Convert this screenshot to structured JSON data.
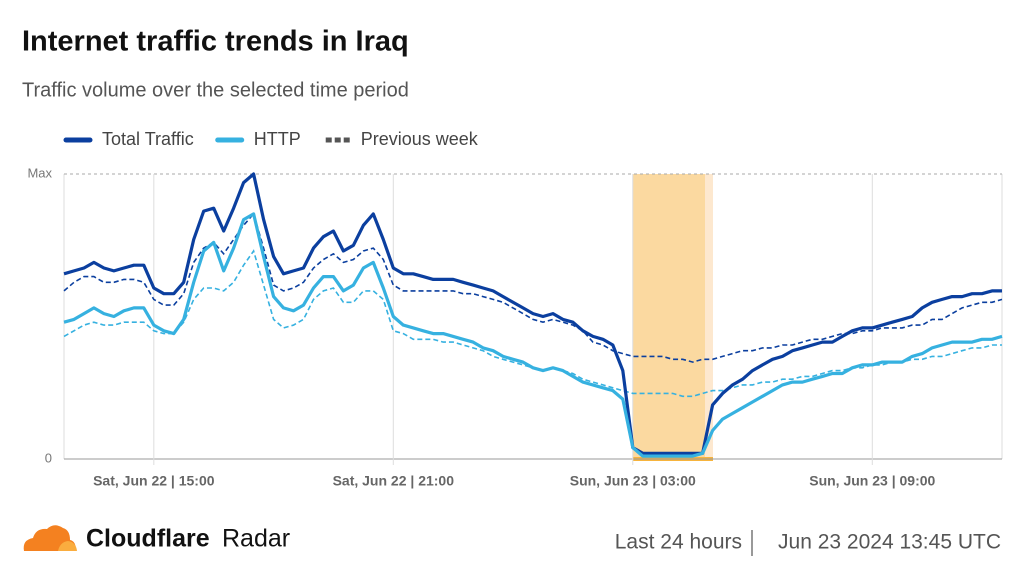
{
  "chart_data": {
    "type": "line",
    "title": "Internet traffic trends in Iraq",
    "subtitle": "Traffic volume over the selected time period",
    "categories": [
      null,
      null,
      null,
      null,
      null,
      null,
      null,
      null,
      null,
      "Sat, Jun 22 | 15:00",
      null,
      null,
      null,
      null,
      null,
      null,
      null,
      null,
      null,
      null,
      null,
      null,
      null,
      null,
      null,
      null,
      null,
      null,
      null,
      null,
      null,
      null,
      null,
      "Sat, Jun 22 | 21:00",
      null,
      null,
      null,
      null,
      null,
      null,
      null,
      null,
      null,
      null,
      null,
      null,
      null,
      null,
      null,
      null,
      null,
      null,
      null,
      null,
      null,
      null,
      null,
      "Sun, Jun 23 | 03:00",
      null,
      null,
      null,
      null,
      null,
      null,
      null,
      null,
      null,
      null,
      null,
      null,
      null,
      null,
      null,
      null,
      null,
      null,
      null,
      null,
      null,
      null,
      null,
      "Sun, Jun 23 | 09:00",
      null,
      null,
      null,
      null,
      null,
      null,
      null,
      null,
      null,
      null,
      null,
      null,
      null
    ],
    "ylim": [
      0,
      1
    ],
    "yticks": [
      0,
      {
        "value": 1,
        "label": "Max"
      }
    ],
    "grid": true,
    "previous_week_label": "Previous week",
    "previous_week_color": "#555555",
    "series": [
      {
        "name": "Total Traffic",
        "color": "#0b3f9f",
        "values": [
          0.65,
          0.66,
          0.67,
          0.69,
          0.67,
          0.66,
          0.67,
          0.68,
          0.68,
          0.6,
          0.58,
          0.58,
          0.62,
          0.77,
          0.87,
          0.88,
          0.8,
          0.88,
          0.97,
          1.0,
          0.84,
          0.71,
          0.65,
          0.66,
          0.67,
          0.74,
          0.78,
          0.8,
          0.73,
          0.75,
          0.82,
          0.86,
          0.77,
          0.67,
          0.65,
          0.65,
          0.64,
          0.63,
          0.63,
          0.63,
          0.62,
          0.61,
          0.6,
          0.59,
          0.57,
          0.55,
          0.53,
          0.51,
          0.5,
          0.51,
          0.49,
          0.48,
          0.45,
          0.43,
          0.42,
          0.4,
          0.31,
          0.04,
          0.02,
          0.02,
          0.02,
          0.02,
          0.02,
          0.02,
          0.02,
          0.19,
          0.23,
          0.26,
          0.28,
          0.31,
          0.33,
          0.35,
          0.36,
          0.38,
          0.39,
          0.4,
          0.41,
          0.41,
          0.43,
          0.45,
          0.46,
          0.46,
          0.47,
          0.48,
          0.49,
          0.5,
          0.53,
          0.55,
          0.56,
          0.57,
          0.57,
          0.58,
          0.58,
          0.59,
          0.59
        ],
        "previous_week": [
          0.59,
          0.62,
          0.64,
          0.64,
          0.62,
          0.62,
          0.63,
          0.63,
          0.62,
          0.56,
          0.54,
          0.54,
          0.58,
          0.69,
          0.74,
          0.76,
          0.72,
          0.77,
          0.82,
          0.86,
          0.74,
          0.61,
          0.59,
          0.6,
          0.62,
          0.67,
          0.7,
          0.72,
          0.69,
          0.7,
          0.73,
          0.74,
          0.7,
          0.61,
          0.59,
          0.59,
          0.59,
          0.59,
          0.59,
          0.59,
          0.58,
          0.58,
          0.57,
          0.56,
          0.55,
          0.53,
          0.51,
          0.49,
          0.48,
          0.49,
          0.48,
          0.47,
          0.45,
          0.41,
          0.4,
          0.38,
          0.37,
          0.36,
          0.36,
          0.36,
          0.36,
          0.35,
          0.35,
          0.34,
          0.35,
          0.35,
          0.36,
          0.37,
          0.38,
          0.38,
          0.39,
          0.39,
          0.4,
          0.4,
          0.41,
          0.42,
          0.42,
          0.43,
          0.44,
          0.44,
          0.45,
          0.45,
          0.46,
          0.46,
          0.46,
          0.47,
          0.47,
          0.49,
          0.49,
          0.51,
          0.53,
          0.54,
          0.55,
          0.55,
          0.56
        ]
      },
      {
        "name": "HTTP",
        "color": "#36b1e0",
        "values": [
          0.48,
          0.49,
          0.51,
          0.53,
          0.51,
          0.5,
          0.52,
          0.53,
          0.53,
          0.47,
          0.45,
          0.44,
          0.49,
          0.62,
          0.73,
          0.76,
          0.66,
          0.74,
          0.84,
          0.86,
          0.71,
          0.57,
          0.53,
          0.52,
          0.54,
          0.6,
          0.64,
          0.64,
          0.59,
          0.61,
          0.67,
          0.69,
          0.6,
          0.5,
          0.47,
          0.46,
          0.45,
          0.44,
          0.44,
          0.43,
          0.42,
          0.41,
          0.39,
          0.38,
          0.36,
          0.35,
          0.34,
          0.32,
          0.31,
          0.32,
          0.31,
          0.29,
          0.27,
          0.26,
          0.25,
          0.24,
          0.21,
          0.04,
          0.01,
          0.01,
          0.01,
          0.01,
          0.01,
          0.01,
          0.02,
          0.1,
          0.14,
          0.16,
          0.18,
          0.2,
          0.22,
          0.24,
          0.26,
          0.27,
          0.27,
          0.28,
          0.29,
          0.3,
          0.3,
          0.32,
          0.33,
          0.33,
          0.34,
          0.34,
          0.34,
          0.36,
          0.37,
          0.39,
          0.4,
          0.41,
          0.41,
          0.41,
          0.42,
          0.42,
          0.43
        ],
        "previous_week": [
          0.43,
          0.45,
          0.47,
          0.48,
          0.47,
          0.47,
          0.48,
          0.48,
          0.48,
          0.45,
          0.44,
          0.44,
          0.48,
          0.56,
          0.6,
          0.6,
          0.59,
          0.62,
          0.68,
          0.73,
          0.61,
          0.49,
          0.46,
          0.47,
          0.49,
          0.56,
          0.59,
          0.6,
          0.55,
          0.55,
          0.59,
          0.59,
          0.56,
          0.45,
          0.44,
          0.42,
          0.42,
          0.42,
          0.41,
          0.41,
          0.4,
          0.39,
          0.38,
          0.36,
          0.35,
          0.34,
          0.33,
          0.32,
          0.31,
          0.32,
          0.31,
          0.3,
          0.28,
          0.27,
          0.26,
          0.25,
          0.24,
          0.23,
          0.23,
          0.23,
          0.23,
          0.23,
          0.22,
          0.22,
          0.23,
          0.24,
          0.24,
          0.25,
          0.26,
          0.26,
          0.27,
          0.27,
          0.28,
          0.28,
          0.29,
          0.29,
          0.3,
          0.31,
          0.31,
          0.32,
          0.32,
          0.33,
          0.33,
          0.34,
          0.34,
          0.35,
          0.35,
          0.36,
          0.36,
          0.37,
          0.38,
          0.39,
          0.39,
          0.4,
          0.4
        ]
      }
    ]
  },
  "footer": {
    "brand": "Cloudflare",
    "product": "Radar",
    "period": "Last 24 hours",
    "timestamp": "Jun 23 2024 13:45 UTC"
  }
}
